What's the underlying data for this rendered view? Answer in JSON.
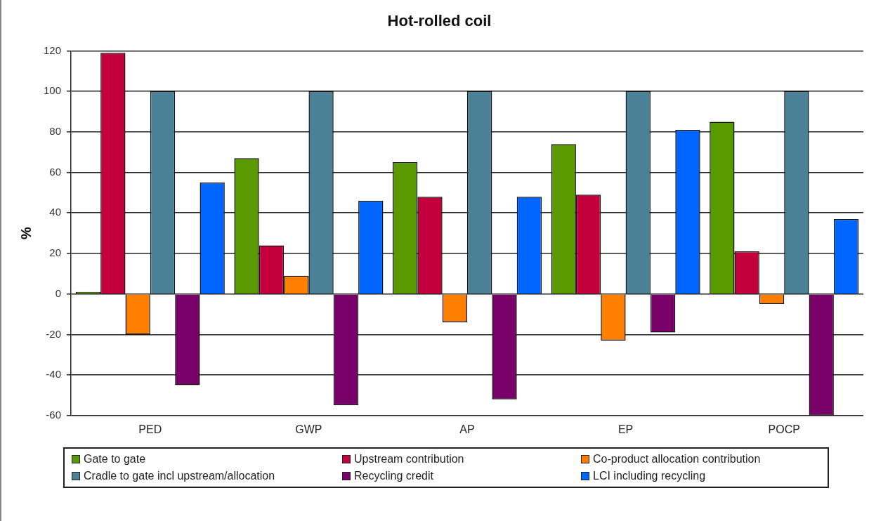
{
  "chart_data": {
    "type": "bar",
    "title": "Hot-rolled coil",
    "ylabel": "%",
    "categories": [
      "PED",
      "GWP",
      "AP",
      "EP",
      "POCP"
    ],
    "series": [
      {
        "name": "Gate to gate",
        "color": "#589a00",
        "values": [
          1,
          67,
          65,
          74,
          85
        ]
      },
      {
        "name": "Upstream contribution",
        "color": "#c4003c",
        "values": [
          119,
          24,
          48,
          49,
          21
        ]
      },
      {
        "name": "Co-product allocation contribution",
        "color": "#ff8000",
        "values": [
          -20,
          9,
          -14,
          -23,
          -5
        ]
      },
      {
        "name": "Cradle to gate incl upstream/allocation",
        "color": "#4a8196",
        "values": [
          100,
          100,
          100,
          100,
          100
        ]
      },
      {
        "name": "Recycling credit",
        "color": "#780068",
        "values": [
          -45,
          -55,
          -52,
          -19,
          -60
        ]
      },
      {
        "name": "LCI including recycling",
        "color": "#0066ff",
        "values": [
          55,
          46,
          48,
          81,
          37
        ]
      }
    ],
    "ylim": [
      -60,
      120
    ],
    "yticks": [
      -60,
      -40,
      -20,
      0,
      20,
      40,
      60,
      80,
      100,
      120
    ],
    "grid": "y",
    "legend": "bottom"
  }
}
